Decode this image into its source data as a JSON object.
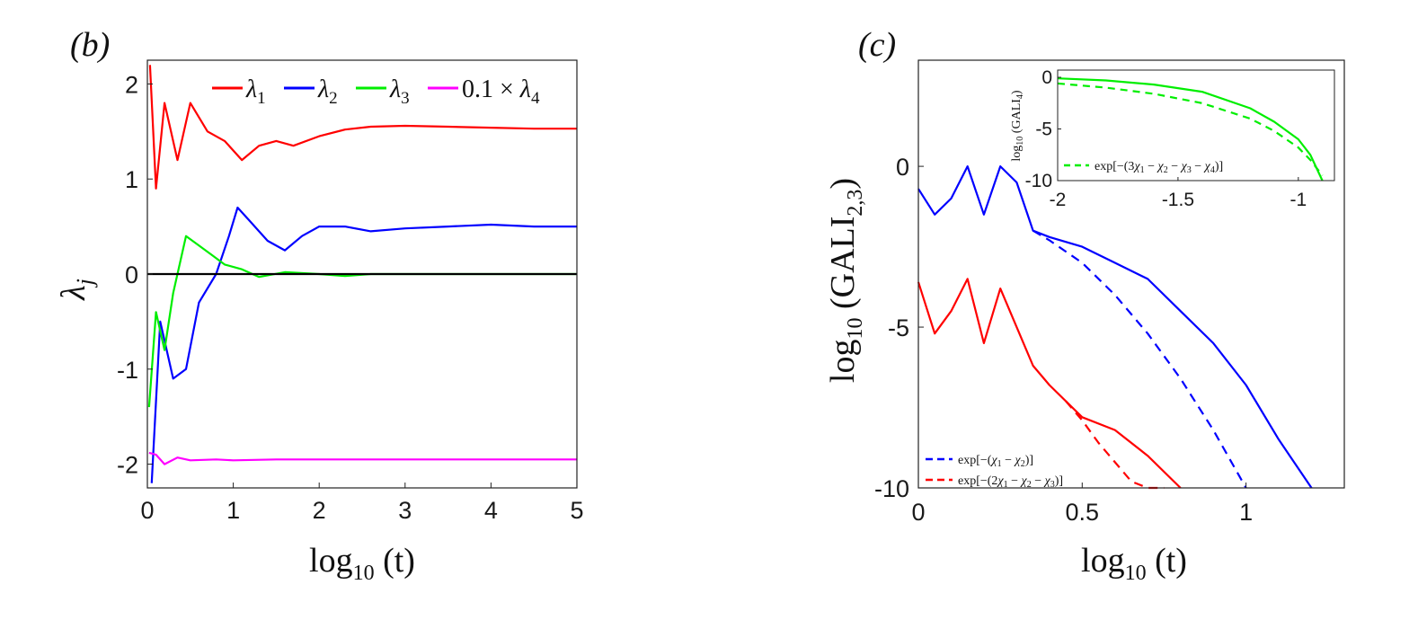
{
  "chart_data": [
    {
      "panel_label": "(b)",
      "type": "line",
      "xlabel": "log10 (t)",
      "ylabel": "λj",
      "xlim": [
        0,
        5
      ],
      "ylim": [
        -2.25,
        2.25
      ],
      "xticks": [
        "0",
        "1",
        "2",
        "3",
        "4",
        "5"
      ],
      "yticks": [
        "-2",
        "-1",
        "0",
        "1",
        "2"
      ],
      "legend_position": "top",
      "series": [
        {
          "name": "λ1",
          "color": "#ff0000",
          "x": [
            0.03,
            0.1,
            0.2,
            0.35,
            0.5,
            0.7,
            0.9,
            1.1,
            1.3,
            1.5,
            1.7,
            2.0,
            2.3,
            2.6,
            3.0,
            3.5,
            4.0,
            4.5,
            5.0
          ],
          "y": [
            2.2,
            0.9,
            1.8,
            1.2,
            1.8,
            1.5,
            1.4,
            1.2,
            1.35,
            1.4,
            1.35,
            1.45,
            1.52,
            1.55,
            1.56,
            1.55,
            1.54,
            1.53,
            1.53
          ]
        },
        {
          "name": "λ2",
          "color": "#0000ff",
          "x": [
            0.05,
            0.15,
            0.3,
            0.45,
            0.6,
            0.8,
            0.95,
            1.05,
            1.2,
            1.4,
            1.6,
            1.8,
            2.0,
            2.3,
            2.6,
            3.0,
            3.5,
            4.0,
            4.5,
            5.0
          ],
          "y": [
            -2.2,
            -0.5,
            -1.1,
            -1.0,
            -0.3,
            0.0,
            0.4,
            0.7,
            0.55,
            0.35,
            0.25,
            0.4,
            0.5,
            0.5,
            0.45,
            0.48,
            0.5,
            0.52,
            0.5,
            0.5
          ]
        },
        {
          "name": "λ3",
          "color": "#00ee00",
          "x": [
            0.02,
            0.1,
            0.2,
            0.3,
            0.45,
            0.6,
            0.75,
            0.9,
            1.1,
            1.3,
            1.6,
            2.0,
            2.3,
            2.6,
            3.0,
            5.0
          ],
          "y": [
            -1.4,
            -0.4,
            -0.8,
            -0.2,
            0.4,
            0.3,
            0.2,
            0.1,
            0.05,
            -0.03,
            0.02,
            0.0,
            -0.02,
            0.0,
            0.0,
            0.0
          ]
        },
        {
          "name": "0.1 × λ4",
          "color": "#ff00ff",
          "x": [
            0.02,
            0.1,
            0.2,
            0.35,
            0.5,
            0.8,
            1.0,
            1.5,
            2.0,
            3.0,
            4.0,
            5.0
          ],
          "y": [
            -1.88,
            -1.9,
            -2.0,
            -1.93,
            -1.96,
            -1.95,
            -1.96,
            -1.95,
            -1.95,
            -1.95,
            -1.95,
            -1.95
          ]
        },
        {
          "name": "",
          "color": "#000000",
          "x": [
            0,
            5
          ],
          "y": [
            0,
            0
          ]
        }
      ]
    },
    {
      "panel_label": "(c)",
      "type": "line",
      "xlabel": "log10 (t)",
      "ylabel": "log10 (GALI2,3)",
      "xlim": [
        0,
        1.3
      ],
      "ylim": [
        -10,
        3.3
      ],
      "xticks": [
        "0",
        "0.5",
        "1"
      ],
      "yticks": [
        "0",
        "-5",
        "-10"
      ],
      "legend_position": "bottom-left",
      "series": [
        {
          "name": "",
          "color": "#0000ff",
          "x": [
            0.0,
            0.05,
            0.1,
            0.15,
            0.2,
            0.25,
            0.3,
            0.35,
            0.4,
            0.5,
            0.6,
            0.7,
            0.8,
            0.9,
            1.0,
            1.1,
            1.2
          ],
          "y": [
            -0.7,
            -1.5,
            -1.0,
            0.0,
            -1.5,
            0.0,
            -0.5,
            -2.0,
            -2.2,
            -2.5,
            -3.0,
            -3.5,
            -4.5,
            -5.5,
            -6.8,
            -8.5,
            -10.0
          ]
        },
        {
          "name": "",
          "color": "#ff0000",
          "x": [
            0.0,
            0.05,
            0.1,
            0.15,
            0.2,
            0.25,
            0.3,
            0.35,
            0.4,
            0.5,
            0.6,
            0.7,
            0.8
          ],
          "y": [
            -3.6,
            -5.2,
            -4.5,
            -3.5,
            -5.5,
            -3.8,
            -5.0,
            -6.2,
            -6.8,
            -7.8,
            -8.2,
            -9.0,
            -10.0
          ]
        },
        {
          "name": "exp[−(χ1 − χ2)]",
          "color": "#0000ff",
          "dash": true,
          "x": [
            0.35,
            0.4,
            0.5,
            0.6,
            0.7,
            0.8,
            0.9,
            1.0
          ],
          "y": [
            -2.0,
            -2.3,
            -3.0,
            -4.0,
            -5.2,
            -6.6,
            -8.2,
            -10.0
          ]
        },
        {
          "name": "exp[−(2χ1 − χ2 − χ3)]",
          "color": "#ff0000",
          "dash": true,
          "x": [
            0.45,
            0.5,
            0.55,
            0.6,
            0.65,
            0.7,
            0.75
          ],
          "y": [
            -7.3,
            -7.9,
            -8.6,
            -9.2,
            -9.8,
            -10.0,
            -10.0
          ]
        }
      ],
      "inset": {
        "type": "line",
        "ylabel": "log10 (GALI4)",
        "xlim": [
          -2,
          -0.85
        ],
        "ylim": [
          -10,
          0.7
        ],
        "xticks": [
          "-2",
          "-1.5",
          "-1"
        ],
        "yticks": [
          "0",
          "-5",
          "-10"
        ],
        "series": [
          {
            "name": "",
            "color": "#00ee00",
            "x": [
              -2.0,
              -1.8,
              -1.6,
              -1.4,
              -1.2,
              -1.1,
              -1.0,
              -0.95,
              -0.9
            ],
            "y": [
              -0.1,
              -0.3,
              -0.7,
              -1.4,
              -3.0,
              -4.3,
              -6.0,
              -7.5,
              -10.0
            ]
          },
          {
            "name": "exp[−(3χ1 − χ2 − χ3 − χ4)]",
            "color": "#00ee00",
            "dash": true,
            "x": [
              -2.0,
              -1.8,
              -1.6,
              -1.4,
              -1.2,
              -1.1,
              -1.0,
              -0.95,
              -0.9
            ],
            "y": [
              -0.6,
              -1.0,
              -1.6,
              -2.5,
              -4.0,
              -5.2,
              -6.8,
              -8.0,
              -9.5
            ]
          }
        ]
      }
    }
  ]
}
